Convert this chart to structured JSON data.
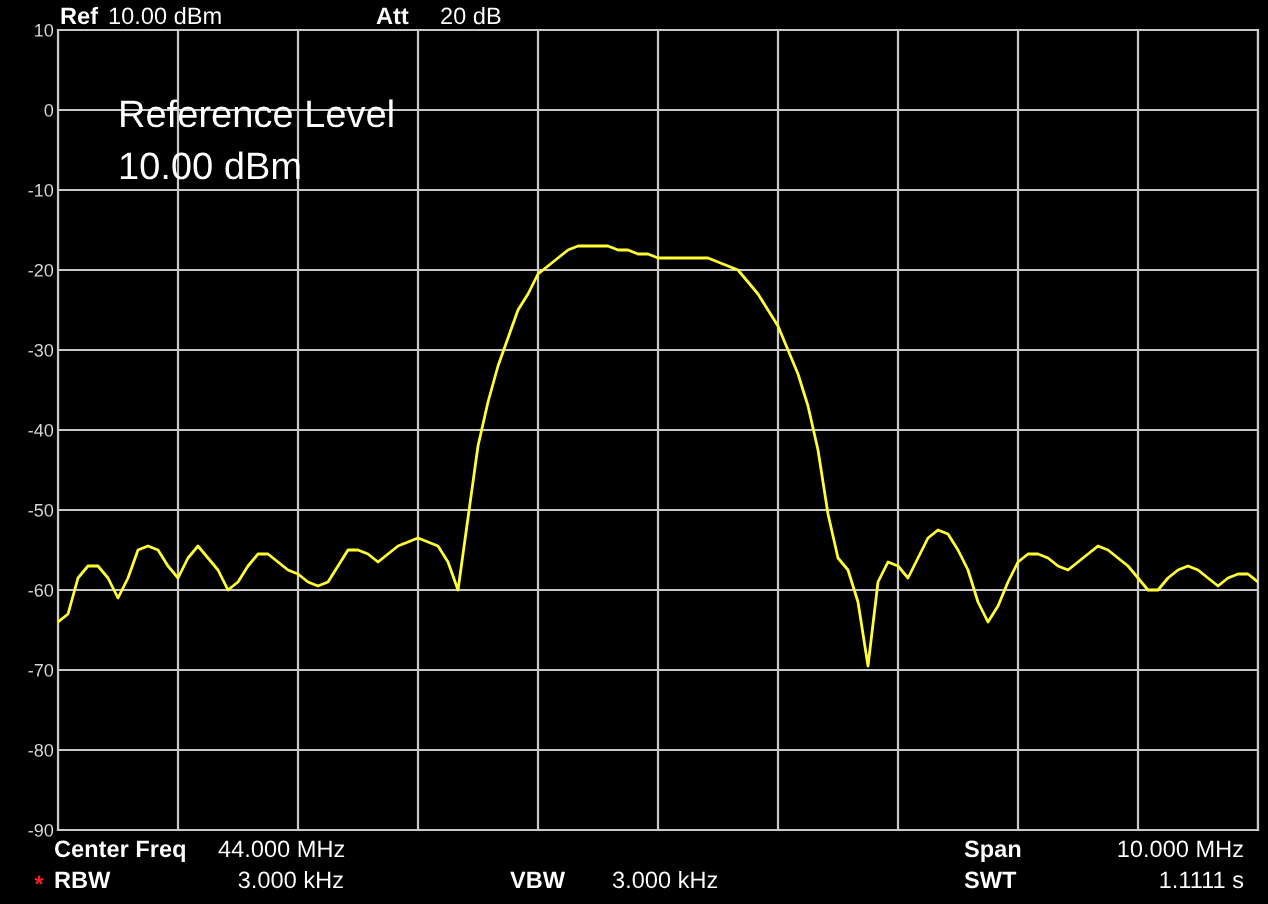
{
  "chart_data": {
    "type": "line",
    "categories": [
      null,
      null,
      null,
      null,
      null,
      null,
      null,
      null,
      null,
      null,
      null,
      null,
      null,
      null,
      null,
      null,
      null,
      null,
      null,
      null,
      null,
      null,
      null,
      null,
      null,
      null,
      null,
      null,
      null,
      null,
      null,
      null,
      null,
      null,
      null,
      null,
      null,
      null,
      null,
      null,
      null,
      null,
      null,
      null,
      null,
      null,
      null,
      null,
      null,
      null,
      null,
      null,
      null,
      null,
      null,
      null,
      null,
      null,
      null,
      null,
      null,
      null,
      null,
      null,
      null,
      null,
      null,
      null,
      null,
      null,
      null,
      null,
      null,
      null,
      null,
      null,
      null,
      null,
      null,
      null,
      null,
      null,
      null,
      null,
      null,
      null,
      null,
      null,
      null,
      null,
      null,
      null,
      null,
      null,
      null,
      null,
      null,
      null,
      null,
      null,
      null,
      null,
      null,
      null,
      null,
      null,
      null,
      null,
      null,
      null,
      null,
      null,
      null,
      null,
      null,
      null,
      null,
      null,
      null,
      null,
      null
    ],
    "series": [
      {
        "color": "#ffff33",
        "values": [
          -64,
          -63,
          -58.5,
          -57,
          -57,
          -58.5,
          -61,
          -58.5,
          -55,
          -54.5,
          -55,
          -57,
          -58.5,
          -56,
          -54.5,
          -56,
          -57.5,
          -60,
          -59,
          -57,
          -55.5,
          -55.5,
          -56.5,
          -57.5,
          -58,
          -59,
          -59.5,
          -59,
          -57,
          -55,
          -55,
          -55.5,
          -56.5,
          -55.5,
          -54.5,
          -54,
          -53.5,
          -54,
          -54.5,
          -56.5,
          -60,
          -51,
          -42,
          -36.5,
          -32,
          -28.5,
          -25,
          -23,
          -20.5,
          -19.5,
          -18.5,
          -17.5,
          -17,
          -17,
          -17,
          -17,
          -17.5,
          -17.5,
          -18,
          -18,
          -18.5,
          -18.5,
          -18.5,
          -18.5,
          -18.5,
          -18.5,
          -19,
          -19.5,
          -20,
          -21.5,
          -23,
          -25,
          -27,
          -30,
          -33,
          -37,
          -42.5,
          -50.5,
          -56,
          -57.5,
          -61.5,
          -69.5,
          -59,
          -56.5,
          -57,
          -58.5,
          -56,
          -53.5,
          -52.5,
          -53,
          -55,
          -57.5,
          -61.5,
          -64,
          -62,
          -59,
          -56.5,
          -55.5,
          -55.5,
          -56,
          -57,
          -57.5,
          -56.5,
          -55.5,
          -54.5,
          -55,
          -56,
          -57,
          -58.5,
          -60,
          -60,
          -58.5,
          -57.5,
          -57,
          -57.5,
          -58.5,
          -59.5,
          -58.5,
          -58,
          -58,
          -59
        ]
      }
    ],
    "ylim": [
      -90,
      10
    ],
    "yticks": [
      10,
      0,
      -10,
      -20,
      -30,
      -40,
      -50,
      -60,
      -70,
      -80,
      -90
    ],
    "grid": true,
    "tick_labels": "y",
    "annotations": [
      "Ref",
      "10.00 dBm",
      "Att",
      "20 dB",
      "Reference Level",
      "10.00 dBm",
      "Center Freq",
      "44.000 MHz",
      "Span",
      "10.000 MHz",
      "*",
      "RBW",
      "3.000 kHz",
      "VBW",
      "3.000 kHz",
      "SWT",
      "1.1111 s"
    ]
  }
}
